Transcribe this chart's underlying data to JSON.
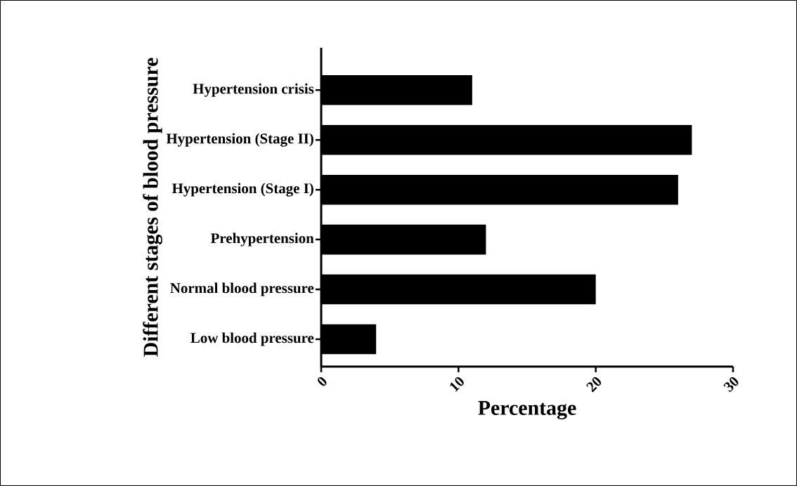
{
  "chart_data": {
    "type": "bar",
    "orientation": "horizontal",
    "xlabel": "Percentage",
    "ylabel": "Different stages of blood pressure",
    "categories": [
      "Hypertension crisis",
      "Hypertension (Stage II)",
      "Hypertension (Stage I)",
      "Prehypertension",
      "Normal blood pressure",
      "Low blood pressure"
    ],
    "values": [
      11,
      27,
      26,
      12,
      20,
      4
    ],
    "color": "#000000",
    "xlim": [
      0,
      30
    ],
    "xticks": [
      0,
      10,
      20,
      30
    ],
    "grid": false
  }
}
